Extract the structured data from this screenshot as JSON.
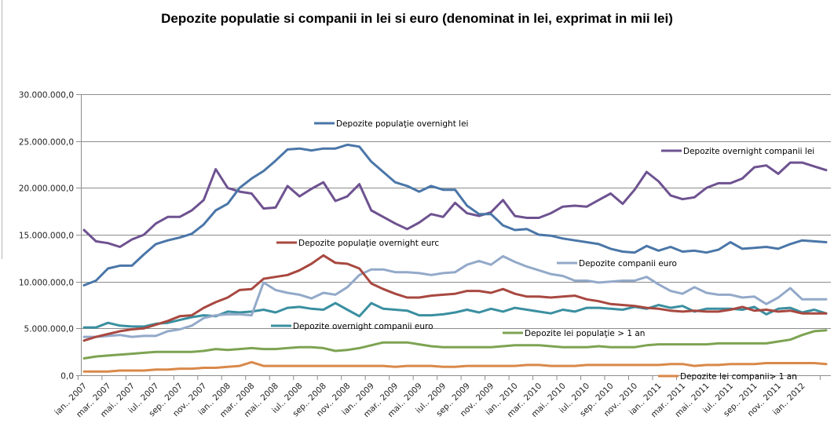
{
  "chart_data": {
    "type": "line",
    "title": "Depozite populatie si companii in lei si euro (denominat in lei, exprimat in mii lei)",
    "xlabel": "",
    "ylabel": "",
    "ylim": [
      0,
      30000000
    ],
    "yticks": [
      "0,0",
      "5.000.000,0",
      "10.000.000,0",
      "15.000.000,0",
      "20.000.000,0",
      "25.000.000,0",
      "30.000.000,0"
    ],
    "ytick_values": [
      0,
      5000000,
      10000000,
      15000000,
      20000000,
      25000000,
      30000000
    ],
    "grid": true,
    "x_tick_labels": [
      "ian.. 2007",
      "mar.. 2007",
      "mai.. 2007",
      "iul.. 2007",
      "sep.. 2007",
      "nov.. 2007",
      "ian.. 2008",
      "mar.. 2008",
      "mai.. 2008",
      "iul.. 2008",
      "sep.. 2008",
      "nov.. 2008",
      "ian.. 2009",
      "mar.. 2009",
      "mai.. 2009",
      "iul.. 2009",
      "sep.. 2009",
      "nov.. 2009",
      "ian.. 2010",
      "mar.. 2010",
      "mai.. 2010",
      "iul.. 2010",
      "sep.. 2010",
      "nov.. 2010",
      "ian.. 2011",
      "mar.. 2011",
      "mai.. 2011",
      "iul.. 2011",
      "sep.. 2011",
      "nov.. 2011",
      "ian.. 2012"
    ],
    "x_months": 63,
    "legend_placement": "inline labels next to series",
    "series": [
      {
        "name": "Depozite populaţie overnight lei",
        "color": "#4a76a8",
        "values": [
          9600000,
          10100000,
          11400000,
          11700000,
          11700000,
          12900000,
          14000000,
          14400000,
          14700000,
          15100000,
          16100000,
          17600000,
          18300000,
          20000000,
          21000000,
          21800000,
          22900000,
          24100000,
          24200000,
          24000000,
          24200000,
          24200000,
          24600000,
          24400000,
          22800000,
          21700000,
          20600000,
          20200000,
          19600000,
          20200000,
          19800000,
          19800000,
          18100000,
          17200000,
          17200000,
          16000000,
          15500000,
          15600000,
          15000000,
          14900000,
          14600000,
          14400000,
          14200000,
          14000000,
          13500000,
          13200000,
          13100000,
          13800000,
          13300000,
          13700000,
          13200000,
          13300000,
          13100000,
          13400000,
          14200000,
          13500000,
          13600000,
          13700000,
          13500000,
          14000000,
          14400000,
          14300000,
          14200000
        ]
      },
      {
        "name": "Depozite overnight companii lei",
        "color": "#6e5290",
        "values": [
          15500000,
          14300000,
          14100000,
          13700000,
          14500000,
          15000000,
          16200000,
          16900000,
          16900000,
          17600000,
          18700000,
          22000000,
          20000000,
          19600000,
          19400000,
          17800000,
          17900000,
          20200000,
          19100000,
          19900000,
          20600000,
          18600000,
          19100000,
          20400000,
          17600000,
          16900000,
          16200000,
          15600000,
          16300000,
          17200000,
          16900000,
          18400000,
          17300000,
          17000000,
          17400000,
          18700000,
          17000000,
          16800000,
          16800000,
          17300000,
          18000000,
          18100000,
          18000000,
          18700000,
          19400000,
          18300000,
          19800000,
          21700000,
          20700000,
          19200000,
          18800000,
          19000000,
          20000000,
          20500000,
          20500000,
          21000000,
          22200000,
          22400000,
          21500000,
          22700000,
          22700000,
          22300000,
          21900000
        ]
      },
      {
        "name": "Depozite populaţie overnight eurc",
        "color": "#a84840",
        "values": [
          3700000,
          4100000,
          4400000,
          4700000,
          4900000,
          5000000,
          5400000,
          5800000,
          6300000,
          6400000,
          7200000,
          7800000,
          8300000,
          9100000,
          9200000,
          10300000,
          10500000,
          10700000,
          11200000,
          11900000,
          12800000,
          12000000,
          11900000,
          11400000,
          9800000,
          9200000,
          8700000,
          8300000,
          8300000,
          8500000,
          8600000,
          8700000,
          9000000,
          9000000,
          8800000,
          9200000,
          8700000,
          8400000,
          8400000,
          8300000,
          8400000,
          8500000,
          8100000,
          7900000,
          7600000,
          7500000,
          7400000,
          7200000,
          7100000,
          6900000,
          6800000,
          6900000,
          6800000,
          6800000,
          7000000,
          7300000,
          6900000,
          7000000,
          6800000,
          6900000,
          6600000,
          6600000,
          6600000
        ]
      },
      {
        "name": "Depozite companii euro",
        "color": "#93a9c9",
        "values": [
          4100000,
          4100000,
          4200000,
          4300000,
          4100000,
          4200000,
          4200000,
          4700000,
          4900000,
          5300000,
          6100000,
          6400000,
          6500000,
          6500000,
          6400000,
          9900000,
          9100000,
          8800000,
          8600000,
          8200000,
          8800000,
          8600000,
          9400000,
          10700000,
          11300000,
          11300000,
          11000000,
          11000000,
          10900000,
          10700000,
          10900000,
          11000000,
          11800000,
          12200000,
          11800000,
          12700000,
          12100000,
          11600000,
          11200000,
          10800000,
          10600000,
          10100000,
          10100000,
          9900000,
          10000000,
          10100000,
          10100000,
          10500000,
          9700000,
          9000000,
          8700000,
          9400000,
          8800000,
          8600000,
          8600000,
          8300000,
          8400000,
          7600000,
          8300000,
          9300000,
          8100000,
          8100000,
          8100000
        ]
      },
      {
        "name": "Depozite overnight companii euro",
        "color": "#3a8fa0",
        "values": [
          5100000,
          5100000,
          5600000,
          5300000,
          5200000,
          5200000,
          5500000,
          5600000,
          5900000,
          6200000,
          6400000,
          6300000,
          6800000,
          6700000,
          6800000,
          7000000,
          6700000,
          7200000,
          7300000,
          7100000,
          7000000,
          7700000,
          7000000,
          6300000,
          7700000,
          7100000,
          7000000,
          6900000,
          6400000,
          6400000,
          6500000,
          6700000,
          7000000,
          6700000,
          7100000,
          6800000,
          7200000,
          7000000,
          6800000,
          6600000,
          7000000,
          6800000,
          7200000,
          7200000,
          7100000,
          7000000,
          7300000,
          7100000,
          7500000,
          7200000,
          7400000,
          6800000,
          7100000,
          7100000,
          7100000,
          7000000,
          7300000,
          6500000,
          7100000,
          7200000,
          6700000,
          7000000,
          6600000
        ]
      },
      {
        "name": "Depozite lei  populaţie > 1 an",
        "color": "#7da352",
        "values": [
          1800000,
          2000000,
          2100000,
          2200000,
          2300000,
          2400000,
          2500000,
          2500000,
          2500000,
          2500000,
          2600000,
          2800000,
          2700000,
          2800000,
          2900000,
          2800000,
          2800000,
          2900000,
          3000000,
          3000000,
          2900000,
          2600000,
          2700000,
          2900000,
          3200000,
          3500000,
          3500000,
          3500000,
          3300000,
          3100000,
          3000000,
          3000000,
          3000000,
          3000000,
          3000000,
          3100000,
          3200000,
          3200000,
          3200000,
          3100000,
          3000000,
          3000000,
          3000000,
          3100000,
          3000000,
          3000000,
          3000000,
          3200000,
          3300000,
          3300000,
          3300000,
          3300000,
          3300000,
          3400000,
          3400000,
          3400000,
          3400000,
          3400000,
          3600000,
          3800000,
          4300000,
          4700000,
          4800000
        ]
      },
      {
        "name": "Depozite lei companii> 1 an",
        "color": "#d9894a",
        "values": [
          400000,
          400000,
          400000,
          500000,
          500000,
          500000,
          600000,
          600000,
          700000,
          700000,
          800000,
          800000,
          900000,
          1000000,
          1400000,
          1000000,
          1000000,
          1000000,
          1000000,
          1000000,
          1000000,
          1000000,
          1000000,
          1000000,
          1000000,
          1000000,
          900000,
          1000000,
          1000000,
          1000000,
          900000,
          900000,
          1000000,
          1000000,
          1000000,
          1000000,
          1000000,
          1100000,
          1100000,
          1000000,
          1000000,
          1000000,
          1100000,
          1100000,
          1100000,
          1100000,
          1100000,
          1100000,
          1100000,
          1200000,
          1200000,
          1000000,
          1100000,
          1100000,
          1200000,
          1200000,
          1200000,
          1300000,
          1300000,
          1300000,
          1300000,
          1300000,
          1200000
        ]
      }
    ],
    "legend_labels": [
      {
        "series": 0,
        "text": "Depozite populaţie overnight lei"
      },
      {
        "series": 1,
        "text": "Depozite overnight companii lei"
      },
      {
        "series": 2,
        "text": "Depozite populaţie overnight eurc"
      },
      {
        "series": 3,
        "text": "Depozite companii euro"
      },
      {
        "series": 4,
        "text": "Depozite overnight companii euro"
      },
      {
        "series": 5,
        "text": "Depozite lei  populaţie > 1 an"
      },
      {
        "series": 6,
        "text": "Depozite lei companii> 1 an"
      }
    ]
  }
}
